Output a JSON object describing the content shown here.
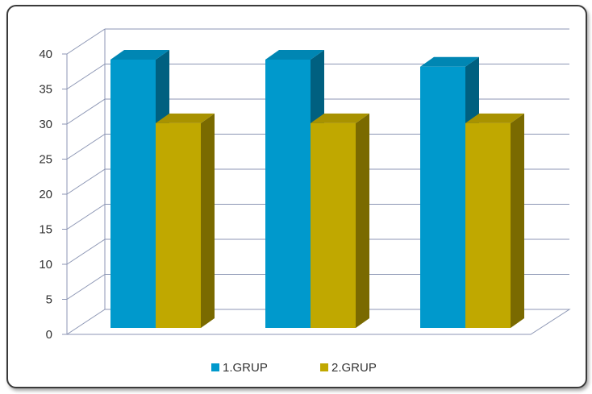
{
  "chart_data": {
    "type": "bar",
    "categories": [
      "",
      "",
      ""
    ],
    "series": [
      {
        "name": "1.GRUP",
        "values": [
          38,
          38,
          37
        ]
      },
      {
        "name": "2.GRUP",
        "values": [
          29,
          29,
          29
        ]
      }
    ],
    "title": "",
    "xlabel": "",
    "ylabel": "",
    "ylim": [
      0,
      40
    ],
    "yticks": [
      "0",
      "5",
      "10",
      "15",
      "20",
      "25",
      "30",
      "35",
      "40"
    ],
    "grid": true,
    "legend_position": "bottom",
    "style": "3d-column"
  },
  "colors": {
    "series1_front": "#0099CC",
    "series1_side": "#006080",
    "series1_top": "#0086B3",
    "series2_front": "#C0A800",
    "series2_side": "#7A6A00",
    "series2_top": "#A89200",
    "grid": "#8C96B4",
    "border": "#3a3a3a"
  }
}
